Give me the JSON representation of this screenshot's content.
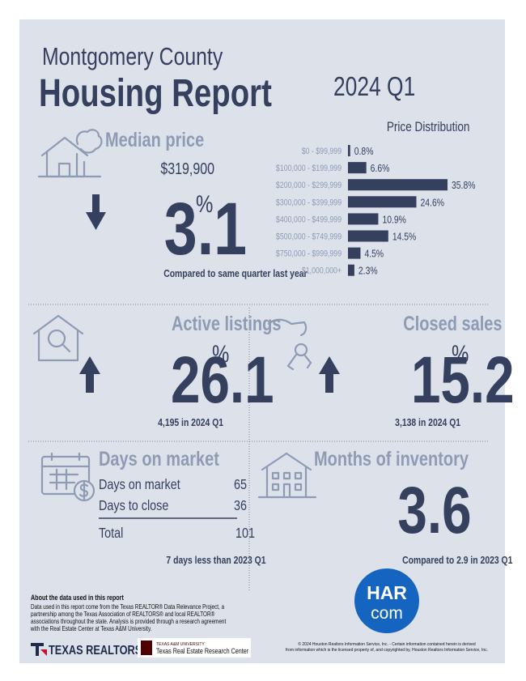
{
  "header": {
    "county": "Montgomery County",
    "title": "Housing Report",
    "period": "2024 Q1"
  },
  "median_price": {
    "label": "Median price",
    "price": "$319,900",
    "change": 3.1,
    "unit": "%",
    "note": "Compared to same quarter last year"
  },
  "price_distribution": {
    "type": "bar",
    "title": "Price Distribution",
    "categories": [
      "$0 - $99,999",
      "$100,000 - $199,999",
      "$200,000 - $299,999",
      "$300,000 - $399,999",
      "$400,000 - $499,999",
      "$500,000 - $749,999",
      "$750,000 - $999,999",
      "$1,000,000+"
    ],
    "values": [
      0.8,
      6.6,
      35.8,
      24.6,
      10.9,
      14.5,
      4.5,
      2.3
    ],
    "value_labels": [
      "0.8%",
      "6.6%",
      "35.8%",
      "24.6%",
      "10.9%",
      "14.5%",
      "4.5%",
      "2.3%"
    ],
    "color": "#34405e"
  },
  "active_listings": {
    "label": "Active listings",
    "change": 26.1,
    "unit": "%",
    "note": "4,195 in 2024 Q1"
  },
  "closed_sales": {
    "label": "Closed sales",
    "change": 15.2,
    "unit": "%",
    "note": "3,138 in 2024 Q1"
  },
  "days_on_market": {
    "label": "Days on market",
    "rows": [
      [
        "Days on market",
        65
      ],
      [
        "Days to close",
        36
      ]
    ],
    "total": [
      "Total",
      101
    ],
    "note": "7 days less than 2023 Q1"
  },
  "months_of_inventory": {
    "label": "Months of inventory",
    "value": 3.6,
    "note": "Compared to 2.9 in 2023 Q1"
  },
  "about": {
    "title": "About the data used in this report",
    "lines": [
      "Data used in this report come from the Texas REALTOR® Data Relevance Project, a",
      "partnership among the Texas Association of REALTORS® and local REALTOR®",
      "associations throughout the state. Analysis is provided through a research agreement",
      "with the Real Estate Center at Texas A&M University."
    ]
  },
  "footer": {
    "texas_realtors": "TEXAS REALTORS",
    "tamu": "TEXAS A&M UNIVERSITY",
    "research_center": "Texas Real Estate Research Center",
    "har": "HAR",
    "har_com": "com",
    "copyright": [
      "© 2024 Houston Realtors Information Service, Inc. - Certain information contained herein is derived",
      "from information which is the licensed property of, and copyrighted by, Houston Realtors Information Service, Inc."
    ]
  }
}
